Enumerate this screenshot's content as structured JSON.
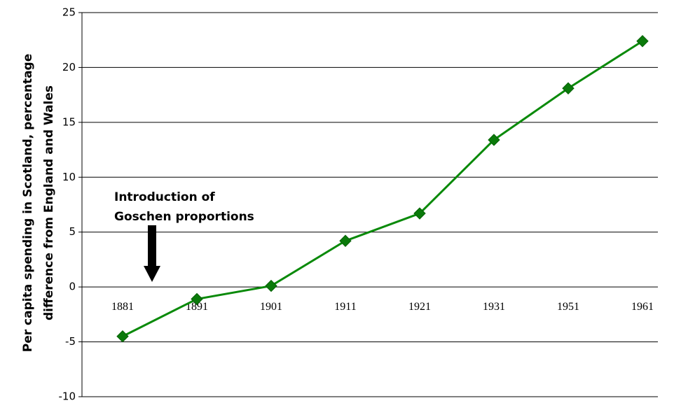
{
  "chart_data": {
    "type": "line",
    "y_label": [
      "Per capita spending in Scotland, percentage",
      "difference from England and Wales"
    ],
    "annotation": [
      "Introduction of",
      "Goschen proportions"
    ],
    "categories": [
      "1881",
      "1891",
      "1901",
      "1911",
      "1921",
      "1931",
      "1951",
      "1961"
    ],
    "series": [
      {
        "name": "Scotland",
        "color": "#0a8a0a",
        "values": [
          -4.5,
          -1.1,
          0.1,
          4.2,
          6.7,
          13.4,
          18.1,
          22.4
        ]
      }
    ],
    "ylim": [
      -10,
      25
    ],
    "yticks": [
      -10,
      -5,
      0,
      5,
      10,
      15,
      20,
      25
    ],
    "grid": true
  }
}
